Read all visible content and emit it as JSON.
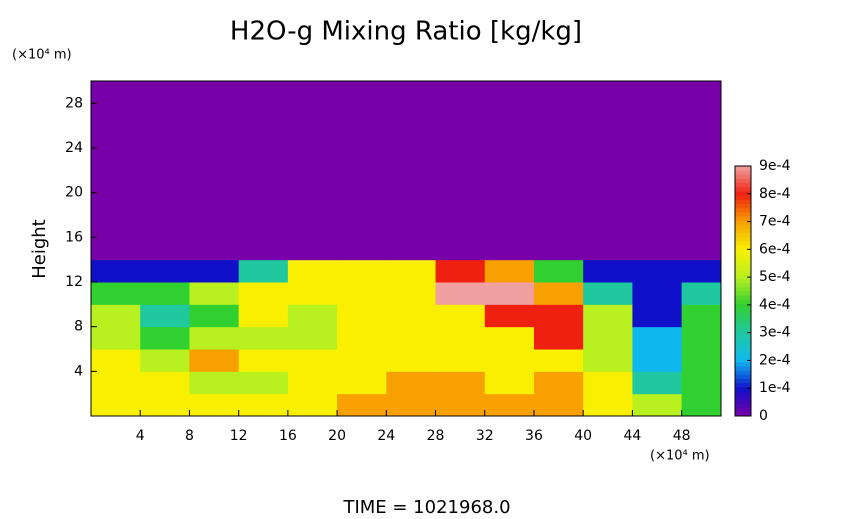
{
  "chart_data": {
    "type": "heatmap",
    "title": "H2O-g Mixing Ratio [kg/kg]",
    "y_label": "Height",
    "y_unit": "(×10⁴ m)",
    "x_unit": "(×10⁴ m)",
    "footer": "TIME = 1021968.0",
    "xlim": [
      0,
      51.2
    ],
    "ylim": [
      0,
      30
    ],
    "xticks": [
      4,
      8,
      12,
      16,
      20,
      24,
      28,
      32,
      36,
      40,
      44,
      48
    ],
    "yticks": [
      4,
      8,
      12,
      16,
      20,
      24,
      28
    ],
    "x": [
      2,
      6,
      10,
      14,
      18,
      22,
      26,
      30,
      34,
      38,
      42,
      46,
      50
    ],
    "y": [
      1,
      3,
      5,
      7,
      9,
      11,
      13,
      15,
      17,
      19,
      21,
      23,
      25,
      27,
      29
    ],
    "values": [
      [
        0.0006,
        0.0006,
        0.0006,
        0.0006,
        0.0006,
        0.0007,
        0.0007,
        0.0007,
        0.0007,
        0.0007,
        0.0006,
        0.0005,
        0.0004
      ],
      [
        0.0006,
        0.0006,
        0.0005,
        0.0005,
        0.0006,
        0.0006,
        0.0007,
        0.0007,
        0.0006,
        0.0007,
        0.0006,
        0.0003,
        0.0004
      ],
      [
        0.0006,
        0.0005,
        0.0007,
        0.0006,
        0.0006,
        0.0006,
        0.0006,
        0.0006,
        0.0006,
        0.0006,
        0.0005,
        0.0002,
        0.0004
      ],
      [
        0.0005,
        0.0004,
        0.0005,
        0.0005,
        0.0005,
        0.0006,
        0.0006,
        0.0006,
        0.0006,
        0.0008,
        0.0005,
        0.0002,
        0.0004
      ],
      [
        0.0005,
        0.0003,
        0.0004,
        0.0006,
        0.0005,
        0.0006,
        0.0006,
        0.0006,
        0.0008,
        0.0008,
        0.0005,
        0.0001,
        0.0004
      ],
      [
        0.0004,
        0.0004,
        0.0005,
        0.0006,
        0.0006,
        0.0006,
        0.0006,
        0.0009,
        0.0009,
        0.0007,
        0.0003,
        0.0001,
        0.0003
      ],
      [
        0.0001,
        0.0001,
        0.0001,
        0.0003,
        0.0006,
        0.0006,
        0.0006,
        0.0008,
        0.0007,
        0.0004,
        0.0001,
        0.0001,
        0.0001
      ],
      [
        0,
        0,
        0,
        0,
        0,
        0,
        0,
        0,
        0,
        0,
        0,
        0,
        0
      ],
      [
        0,
        0,
        0,
        0,
        0,
        0,
        0,
        0,
        0,
        0,
        0,
        0,
        0
      ],
      [
        0,
        0,
        0,
        0,
        0,
        0,
        0,
        0,
        0,
        0,
        0,
        0,
        0
      ],
      [
        0,
        0,
        0,
        0,
        0,
        0,
        0,
        0,
        0,
        0,
        0,
        0,
        0
      ],
      [
        0,
        0,
        0,
        0,
        0,
        0,
        0,
        0,
        0,
        0,
        0,
        0,
        0
      ],
      [
        0,
        0,
        0,
        0,
        0,
        0,
        0,
        0,
        0,
        0,
        0,
        0,
        0
      ],
      [
        0,
        0,
        0,
        0,
        0,
        0,
        0,
        0,
        0,
        0,
        0,
        0,
        0
      ],
      [
        0,
        0,
        0,
        0,
        0,
        0,
        0,
        0,
        0,
        0,
        0,
        0,
        0
      ]
    ],
    "zlim": [
      0,
      0.0009
    ],
    "zticks": [
      0,
      {
        "value": 0.0001,
        "label": "1e-4"
      },
      {
        "value": 0.0002,
        "label": "2e-4"
      },
      {
        "value": 0.0003,
        "label": "3e-4"
      },
      {
        "value": 0.0004,
        "label": "4e-4"
      },
      {
        "value": 0.0005,
        "label": "5e-4"
      },
      {
        "value": 0.0006,
        "label": "6e-4"
      },
      {
        "value": 0.0007,
        "label": "7e-4"
      },
      {
        "value": 0.0008,
        "label": "8e-4"
      },
      {
        "value": 0.0009,
        "label": "9e-4"
      }
    ],
    "colorscale": [
      "#7800a8",
      "#1010c8",
      "#10b8f0",
      "#20c8a0",
      "#30d030",
      "#b8f020",
      "#f8f000",
      "#f8a000",
      "#f02010",
      "#f0a0a0"
    ]
  }
}
